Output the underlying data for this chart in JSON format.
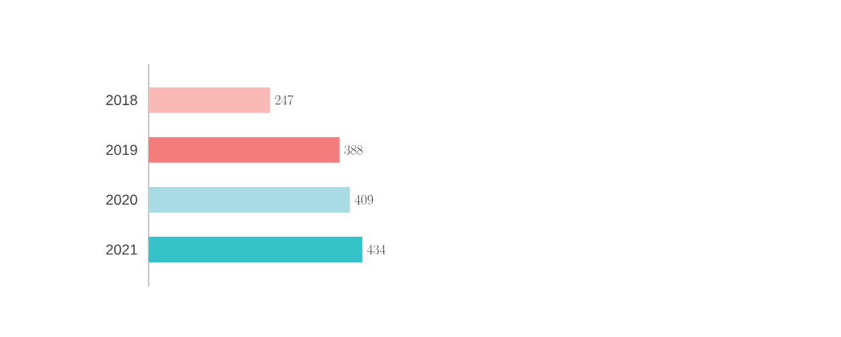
{
  "chart_data": {
    "type": "bar",
    "orientation": "horizontal",
    "categories": [
      "2018",
      "2019",
      "2020",
      "2021"
    ],
    "values": [
      247,
      388,
      409,
      434
    ],
    "colors": [
      "#f9bab5",
      "#f47c7c",
      "#a8dbe3",
      "#35c2c9"
    ],
    "data_labels": true
  }
}
